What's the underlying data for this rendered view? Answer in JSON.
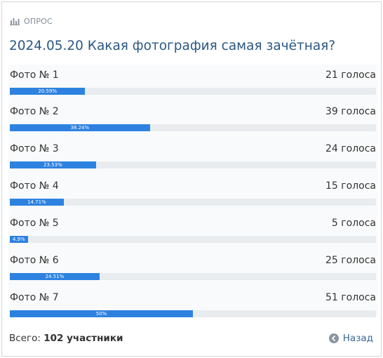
{
  "header": {
    "label": "ОПРОС",
    "icon": "bar-chart-icon"
  },
  "poll": {
    "title": "2024.05.20 Какая фотография самая зачётная?",
    "options": [
      {
        "label": "Фото № 1",
        "votes": "21 голоса",
        "percent_label": "20.59%",
        "percent": 20.59
      },
      {
        "label": "Фото № 2",
        "votes": "39 голоса",
        "percent_label": "38.24%",
        "percent": 38.24
      },
      {
        "label": "Фото № 3",
        "votes": "24 голоса",
        "percent_label": "23.53%",
        "percent": 23.53
      },
      {
        "label": "Фото № 4",
        "votes": "15 голоса",
        "percent_label": "14.71%",
        "percent": 14.71
      },
      {
        "label": "Фото № 5",
        "votes": "5 голоса",
        "percent_label": "4.9%",
        "percent": 4.9
      },
      {
        "label": "Фото № 6",
        "votes": "25 голоса",
        "percent_label": "24.51%",
        "percent": 24.51
      },
      {
        "label": "Фото № 7",
        "votes": "51 голоса",
        "percent_label": "50%",
        "percent": 50
      }
    ],
    "bar_color": "#2d82e0",
    "track_color": "#e9ecef"
  },
  "footer": {
    "total_prefix": "Всего:",
    "total_value": "102 участники",
    "back_label": "Назад",
    "back_icon": "arrow-left-circle-icon"
  }
}
